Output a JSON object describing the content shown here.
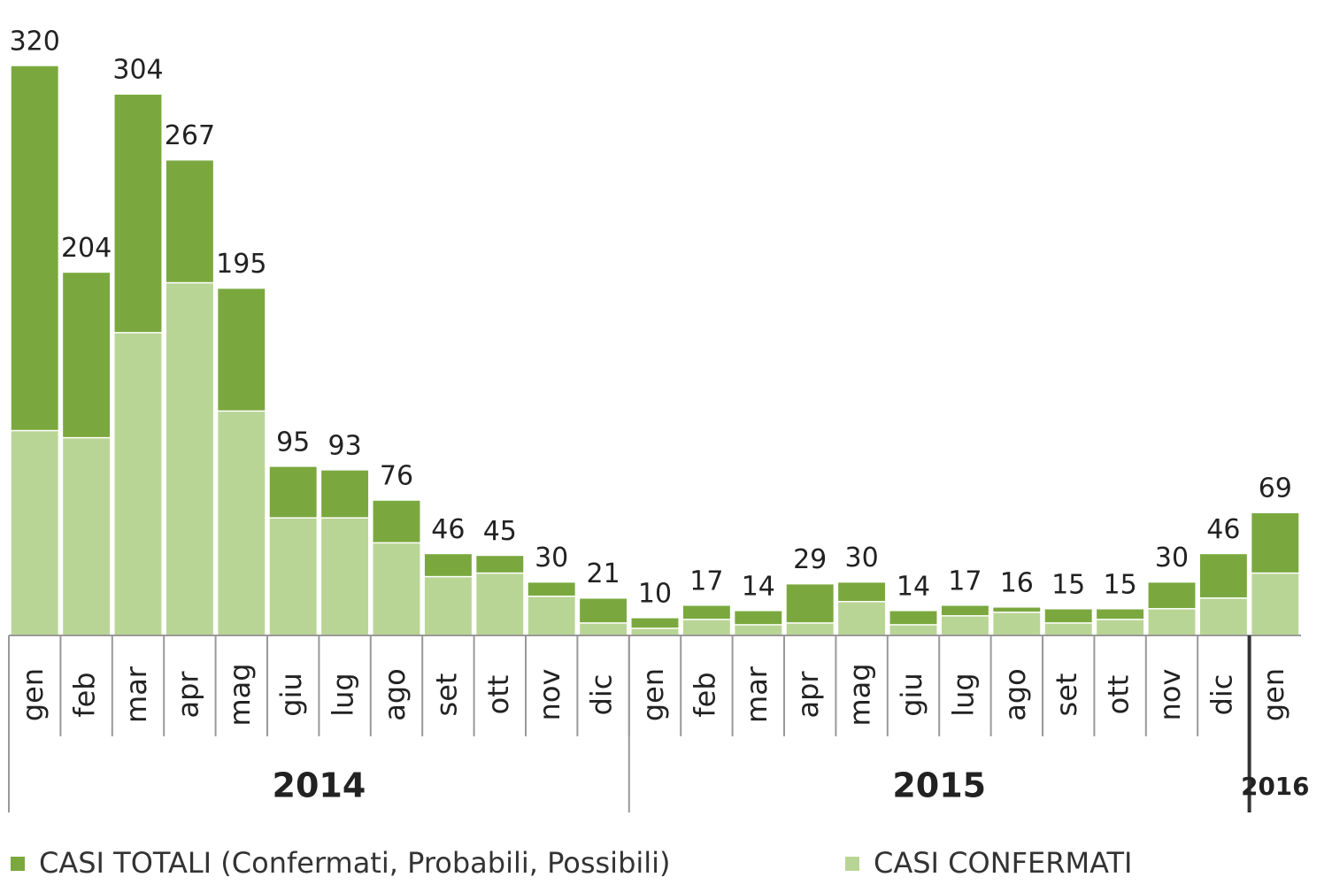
{
  "chart_data": {
    "type": "bar",
    "groups": [
      {
        "name": "2014",
        "categories": [
          "gen",
          "feb",
          "mar",
          "apr",
          "mag",
          "giu",
          "lug",
          "ago",
          "set",
          "ott",
          "nov",
          "dic"
        ]
      },
      {
        "name": "2015",
        "categories": [
          "gen",
          "feb",
          "mar",
          "apr",
          "mag",
          "giu",
          "lug",
          "ago",
          "set",
          "ott",
          "nov",
          "dic"
        ]
      },
      {
        "name": "2016",
        "categories": [
          "gen"
        ]
      }
    ],
    "series": [
      {
        "name": "CASI TOTALI (Confermati, Probabili, Possibili)",
        "color": "#7aa83e",
        "values": [
          320,
          204,
          304,
          267,
          195,
          95,
          93,
          76,
          46,
          45,
          30,
          21,
          10,
          17,
          14,
          29,
          30,
          14,
          17,
          16,
          15,
          15,
          30,
          46,
          69
        ]
      },
      {
        "name": "CASI CONFERMATI",
        "color": "#b9d596",
        "values": [
          115,
          111,
          170,
          198,
          126,
          66,
          66,
          52,
          33,
          35,
          22,
          7,
          4,
          9,
          6,
          7,
          19,
          6,
          11,
          13,
          7,
          9,
          15,
          21,
          35
        ]
      }
    ],
    "ylim": [
      0,
      320
    ]
  }
}
